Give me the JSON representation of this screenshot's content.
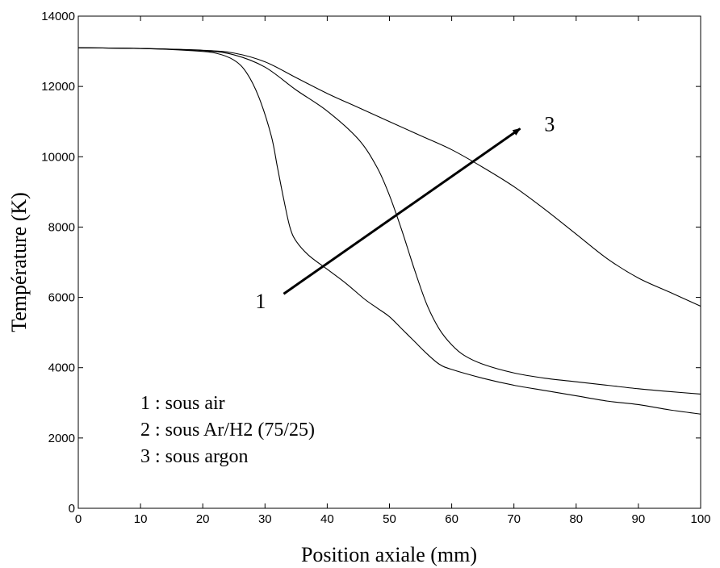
{
  "chart_data": {
    "type": "line",
    "title": "",
    "xlabel": "Position axiale (mm)",
    "ylabel": "Température (K)",
    "xlim": [
      0,
      100
    ],
    "ylim": [
      0,
      14000
    ],
    "xticks": [
      0,
      10,
      20,
      30,
      40,
      50,
      60,
      70,
      80,
      90,
      100
    ],
    "yticks": [
      0,
      2000,
      4000,
      6000,
      8000,
      10000,
      12000,
      14000
    ],
    "grid": false,
    "legend_lines": [
      "1 : sous air",
      "2 : sous Ar/H2 (75/25)",
      "3 : sous argon"
    ],
    "arrow": {
      "start_label": "1",
      "end_label": "3",
      "from": [
        33,
        6100
      ],
      "to": [
        71,
        10800
      ]
    },
    "series": [
      {
        "points": [
          [
            0,
            13100
          ],
          [
            10,
            13080
          ],
          [
            18,
            13020
          ],
          [
            22,
            12950
          ],
          [
            25,
            12750
          ],
          [
            27,
            12400
          ],
          [
            29,
            11700
          ],
          [
            31,
            10600
          ],
          [
            32,
            9700
          ],
          [
            33,
            8800
          ],
          [
            34,
            8000
          ],
          [
            35,
            7600
          ],
          [
            37,
            7200
          ],
          [
            40,
            6800
          ],
          [
            43,
            6400
          ],
          [
            46,
            5950
          ],
          [
            48,
            5700
          ],
          [
            50,
            5450
          ],
          [
            52,
            5100
          ],
          [
            54,
            4750
          ],
          [
            56,
            4400
          ],
          [
            58,
            4100
          ],
          [
            60,
            3950
          ],
          [
            65,
            3700
          ],
          [
            70,
            3500
          ],
          [
            75,
            3350
          ],
          [
            80,
            3200
          ],
          [
            85,
            3050
          ],
          [
            90,
            2950
          ],
          [
            95,
            2800
          ],
          [
            100,
            2680
          ]
        ]
      },
      {
        "points": [
          [
            0,
            13100
          ],
          [
            10,
            13080
          ],
          [
            20,
            13020
          ],
          [
            25,
            12900
          ],
          [
            30,
            12550
          ],
          [
            35,
            11900
          ],
          [
            40,
            11300
          ],
          [
            45,
            10500
          ],
          [
            48,
            9700
          ],
          [
            50,
            8900
          ],
          [
            52,
            7900
          ],
          [
            54,
            6800
          ],
          [
            56,
            5800
          ],
          [
            58,
            5100
          ],
          [
            60,
            4650
          ],
          [
            62,
            4350
          ],
          [
            65,
            4100
          ],
          [
            70,
            3850
          ],
          [
            75,
            3700
          ],
          [
            80,
            3600
          ],
          [
            85,
            3500
          ],
          [
            90,
            3400
          ],
          [
            95,
            3320
          ],
          [
            100,
            3250
          ]
        ]
      },
      {
        "points": [
          [
            0,
            13100
          ],
          [
            10,
            13080
          ],
          [
            20,
            13030
          ],
          [
            25,
            12950
          ],
          [
            30,
            12700
          ],
          [
            35,
            12250
          ],
          [
            40,
            11800
          ],
          [
            45,
            11400
          ],
          [
            50,
            11000
          ],
          [
            55,
            10600
          ],
          [
            60,
            10200
          ],
          [
            65,
            9700
          ],
          [
            70,
            9150
          ],
          [
            75,
            8500
          ],
          [
            80,
            7800
          ],
          [
            85,
            7100
          ],
          [
            90,
            6550
          ],
          [
            95,
            6150
          ],
          [
            100,
            5750
          ]
        ]
      }
    ]
  }
}
